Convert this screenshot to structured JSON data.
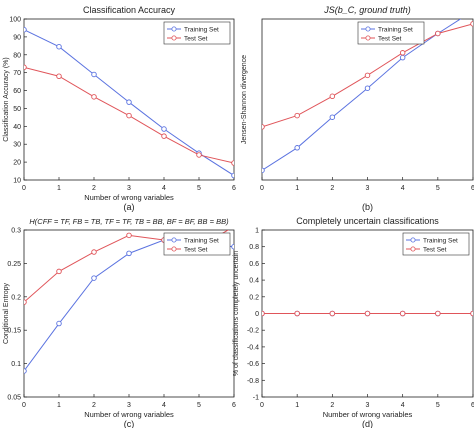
{
  "figure": {
    "colors": {
      "training": "#5b73e0",
      "test": "#e0555a",
      "axis": "#222222",
      "background": "#ffffff"
    }
  },
  "chart_data": [
    {
      "type": "line",
      "title": "Classification Accuracy",
      "xlabel": "Number of wrong variables",
      "ylabel": "Classification Accuracy (%)",
      "caption": "(a)",
      "x": [
        0,
        1,
        2,
        3,
        4,
        5,
        6
      ],
      "xlim": [
        0,
        6
      ],
      "ylim": [
        10,
        100
      ],
      "xticks": [
        "0",
        "1",
        "2",
        "3",
        "4",
        "5",
        "6"
      ],
      "yticks": [
        "10",
        "20",
        "30",
        "40",
        "50",
        "60",
        "70",
        "80",
        "90",
        "100"
      ],
      "legend_position": "top-right",
      "grid": false,
      "series": [
        {
          "name": "Training Set",
          "color": "#5b73e0",
          "values": [
            94,
            84.5,
            69,
            53.5,
            38.5,
            25,
            12.5
          ]
        },
        {
          "name": "Test Set",
          "color": "#e0555a",
          "values": [
            73,
            68,
            56.5,
            46,
            34.5,
            24,
            19.5
          ]
        }
      ]
    },
    {
      "type": "line",
      "title": "JS(b_C, ground truth)",
      "xlabel": "",
      "ylabel": "Jensen-Shannon divergence",
      "caption": "(b)",
      "x": [
        0,
        1,
        2,
        3,
        4,
        5,
        6
      ],
      "xlim": [
        0,
        6
      ],
      "ylim": [
        0,
        1
      ],
      "xticks": [
        "0",
        "1",
        "2",
        "3",
        "4",
        "5",
        "6"
      ],
      "yticks": [],
      "legend_position": "top-left",
      "grid": false,
      "series": [
        {
          "name": "Training Set",
          "color": "#5b73e0",
          "values": [
            0.06,
            0.2,
            0.39,
            0.57,
            0.76,
            0.91,
            1.05
          ]
        },
        {
          "name": "Test Set",
          "color": "#e0555a",
          "values": [
            0.33,
            0.4,
            0.52,
            0.65,
            0.79,
            0.91,
            0.97
          ]
        }
      ]
    },
    {
      "type": "line",
      "title": "H(CFF = TF, FB = TB, TF = TF, TB = BB, BF = BF, BB = BB)",
      "xlabel": "Number of wrong variables",
      "ylabel": "Conditional Entropy",
      "caption": "(c)",
      "x": [
        0,
        1,
        2,
        3,
        4,
        5,
        6
      ],
      "xlim": [
        0,
        6
      ],
      "ylim": [
        0.05,
        0.3
      ],
      "xticks": [
        "0",
        "1",
        "2",
        "3",
        "4",
        "5",
        "6"
      ],
      "yticks": [
        "0.05",
        "0.1",
        "0.15",
        "0.2",
        "0.25",
        "0.3"
      ],
      "legend_position": "top-right",
      "grid": false,
      "series": [
        {
          "name": "Training Set",
          "color": "#5b73e0",
          "values": [
            0.089,
            0.16,
            0.228,
            0.265,
            0.285,
            0.28,
            0.275
          ]
        },
        {
          "name": "Test Set",
          "color": "#e0555a",
          "values": [
            0.192,
            0.238,
            0.267,
            0.292,
            0.285,
            0.275,
            0.305
          ]
        }
      ]
    },
    {
      "type": "line",
      "title": "Completely uncertain classifications",
      "xlabel": "Number of wrong variables",
      "ylabel": "% of classifications completely uncertain",
      "caption": "(d)",
      "x": [
        0,
        1,
        2,
        3,
        4,
        5,
        6
      ],
      "xlim": [
        0,
        6
      ],
      "ylim": [
        -1,
        1
      ],
      "xticks": [
        "0",
        "1",
        "2",
        "3",
        "4",
        "5",
        "6"
      ],
      "yticks": [
        "-1",
        "-0.8",
        "-0.6",
        "-0.4",
        "-0.2",
        "0",
        "0.2",
        "0.4",
        "0.6",
        "0.8",
        "1"
      ],
      "legend_position": "top-right",
      "grid": false,
      "series": [
        {
          "name": "Training Set",
          "color": "#5b73e0",
          "values": [
            0,
            0,
            0,
            0,
            0,
            0,
            0
          ]
        },
        {
          "name": "Test Set",
          "color": "#e0555a",
          "values": [
            0,
            0,
            0,
            0,
            0,
            0,
            0
          ]
        }
      ]
    }
  ]
}
